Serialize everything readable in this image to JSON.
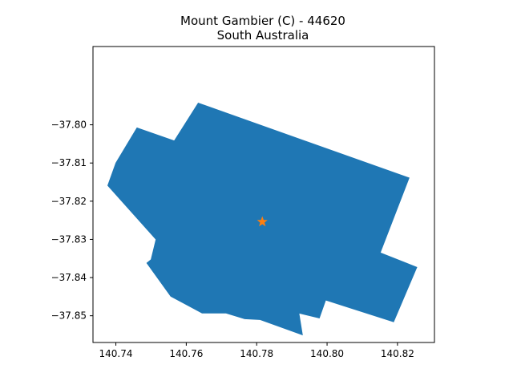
{
  "title": {
    "line1": "Mount Gambier (C) - 44620",
    "line2": "South Australia"
  },
  "colors": {
    "region_fill": "#1f77b4",
    "marker": "#ff7f0e",
    "axes": "#000000",
    "background": "#ffffff"
  },
  "chart_data": {
    "type": "map",
    "xlim": [
      140.7335,
      140.8305
    ],
    "ylim": [
      -37.857,
      -37.7795
    ],
    "x_ticks": [
      {
        "value": 140.74,
        "label": "140.74"
      },
      {
        "value": 140.76,
        "label": "140.76"
      },
      {
        "value": 140.78,
        "label": "140.78"
      },
      {
        "value": 140.8,
        "label": "140.80"
      },
      {
        "value": 140.82,
        "label": "140.82"
      }
    ],
    "y_ticks": [
      {
        "value": -37.8,
        "label": "−37.80"
      },
      {
        "value": -37.81,
        "label": "−37.81"
      },
      {
        "value": -37.82,
        "label": "−37.82"
      },
      {
        "value": -37.83,
        "label": "−37.83"
      },
      {
        "value": -37.84,
        "label": "−37.84"
      },
      {
        "value": -37.85,
        "label": "−37.85"
      }
    ],
    "grid": false,
    "region": {
      "name": "Mount Gambier (C)",
      "outline": [
        [
          140.746,
          -37.8008
        ],
        [
          140.7566,
          -37.8042
        ],
        [
          140.7634,
          -37.7943
        ],
        [
          140.8233,
          -37.8139
        ],
        [
          140.8151,
          -37.8335
        ],
        [
          140.8255,
          -37.8373
        ],
        [
          140.8189,
          -37.8516
        ],
        [
          140.7996,
          -37.8459
        ],
        [
          140.7978,
          -37.8506
        ],
        [
          140.792,
          -37.8493
        ],
        [
          140.793,
          -37.855
        ],
        [
          140.7809,
          -37.851
        ],
        [
          140.7766,
          -37.8508
        ],
        [
          140.7713,
          -37.8493
        ],
        [
          140.7645,
          -37.8493
        ],
        [
          140.7556,
          -37.8449
        ],
        [
          140.7488,
          -37.8362
        ],
        [
          140.75,
          -37.8353
        ],
        [
          140.7514,
          -37.83
        ],
        [
          140.7377,
          -37.8159
        ],
        [
          140.74,
          -37.81
        ]
      ]
    },
    "marker": {
      "shape": "star",
      "x": 140.7816,
      "y": -37.8254
    }
  }
}
